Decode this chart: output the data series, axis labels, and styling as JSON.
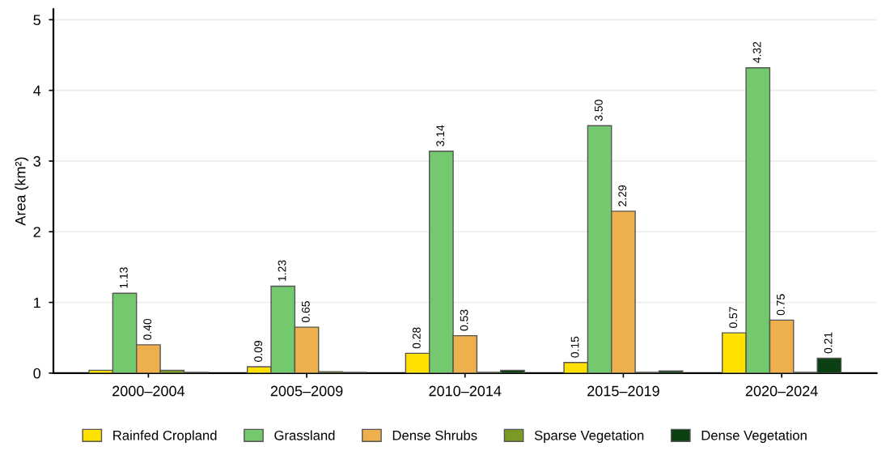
{
  "chart_data": {
    "type": "bar",
    "ylabel": "Area (km²)",
    "categories": [
      "2000–2004",
      "2005–2009",
      "2010–2014",
      "2015–2019",
      "2020–2024"
    ],
    "series": [
      {
        "name": "Rainfed Cropland",
        "color": "#ffe100",
        "values": [
          0.04,
          0.09,
          0.28,
          0.15,
          0.57
        ],
        "value_labels": [
          null,
          "0.09",
          "0.28",
          "0.15",
          "0.57"
        ]
      },
      {
        "name": "Grassland",
        "color": "#74c96e",
        "values": [
          1.13,
          1.23,
          3.14,
          3.5,
          4.32
        ],
        "value_labels": [
          "1.13",
          "1.23",
          "3.14",
          "3.50",
          "4.32"
        ]
      },
      {
        "name": "Dense Shrubs",
        "color": "#eeb04c",
        "values": [
          0.4,
          0.65,
          0.53,
          2.29,
          0.75
        ],
        "value_labels": [
          "0.40",
          "0.65",
          "0.53",
          "2.29",
          "0.75"
        ]
      },
      {
        "name": "Sparse Vegetation",
        "color": "#7a9a26",
        "values": [
          0.04,
          0.02,
          0.01,
          0.01,
          0.01
        ],
        "value_labels": [
          null,
          null,
          null,
          null,
          null
        ]
      },
      {
        "name": "Dense Vegetation",
        "color": "#0b4012",
        "values": [
          0.01,
          0.01,
          0.04,
          0.03,
          0.21
        ],
        "value_labels": [
          null,
          null,
          null,
          null,
          "0.21"
        ]
      }
    ],
    "ylim": [
      0,
      5.15
    ],
    "yticks": [
      0,
      1,
      2,
      3,
      4,
      5
    ],
    "grid": "y",
    "legend": "bottom"
  }
}
